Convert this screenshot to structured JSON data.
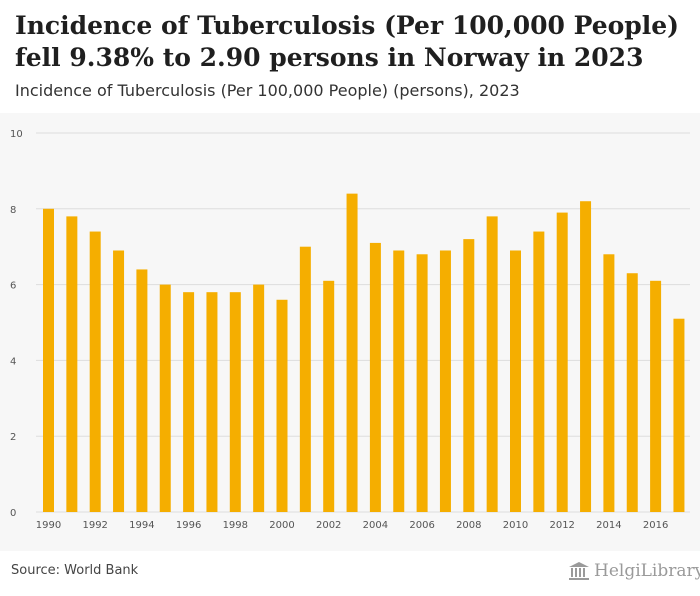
{
  "header": {
    "title": "Incidence of Tuberculosis (Per 100,000 People) fell 9.38% to 2.90 persons in Norway in 2023",
    "subtitle": "Incidence of Tuberculosis (Per 100,000 People) (persons), 2023"
  },
  "footer": {
    "source": "Source: World Bank",
    "logo_text": "HelgiLibrary"
  },
  "colors": {
    "bar": "#f5ae00",
    "grid": "#dddddd",
    "background": "#f7f7f7",
    "axis_text": "#555555"
  },
  "chart_data": {
    "type": "bar",
    "categories": [
      "1990",
      "1991",
      "1992",
      "1993",
      "1994",
      "1995",
      "1996",
      "1997",
      "1998",
      "1999",
      "2000",
      "2001",
      "2002",
      "2003",
      "2004",
      "2005",
      "2006",
      "2007",
      "2008",
      "2009",
      "2010",
      "2011",
      "2012",
      "2013",
      "2014",
      "2015",
      "2016",
      "2017"
    ],
    "series": [
      {
        "values": [
          8.0,
          7.8,
          7.4,
          6.9,
          6.4,
          6.0,
          5.8,
          5.8,
          5.8,
          6.0,
          5.6,
          7.0,
          6.1,
          8.4,
          7.1,
          6.9,
          6.8,
          6.9,
          7.2,
          7.8,
          6.9,
          7.4,
          7.9,
          8.2,
          6.8,
          6.3,
          6.1,
          5.1
        ]
      }
    ],
    "x_tick_labels": [
      "1990",
      "1992",
      "1994",
      "1996",
      "1998",
      "2000",
      "2002",
      "2004",
      "2006",
      "2008",
      "2010",
      "2012",
      "2014",
      "2016"
    ],
    "y_ticks": [
      0,
      2,
      4,
      6,
      8,
      10
    ],
    "ylim": [
      0,
      10
    ],
    "grid": true,
    "legend": "none"
  }
}
